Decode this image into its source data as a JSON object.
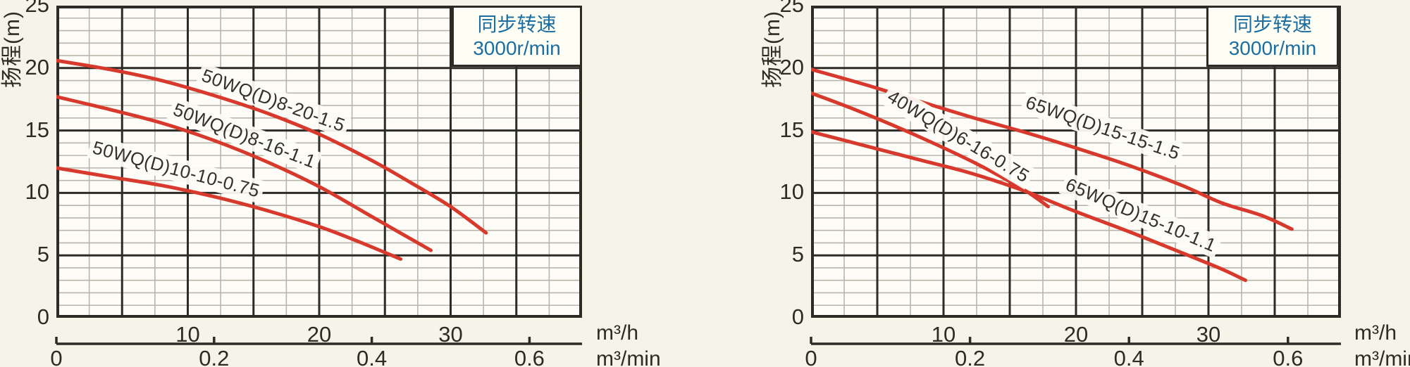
{
  "page": {
    "background": "#f6f4e8"
  },
  "colors": {
    "curve": "#d73a2d",
    "grid_major": "#2d2b26",
    "grid_minor": "#b9b5aa",
    "plot_bg": "#fdfcf6",
    "legend_bg": "#fffef4",
    "legend_text": "#1c6da1",
    "text": "#2d2b26"
  },
  "charts": [
    {
      "y_axis_title": "扬程(m)",
      "legend": {
        "line1": "同步转速",
        "line2": "3000r/min"
      },
      "primary_unit": "m³/h",
      "secondary_unit": "m³/min",
      "chart_data": {
        "type": "line",
        "title": "",
        "ylabel": "扬程(m)",
        "xlabel": "m³/h",
        "x2label": "m³/min",
        "xlim": [
          0,
          40
        ],
        "ylim": [
          0,
          25
        ],
        "x_major_step": 5,
        "x_minor_step": 2.5,
        "y_major_step": 5,
        "y_minor_step": 1,
        "x_tick_labels": [
          "10",
          "20",
          "30"
        ],
        "x_tick_values": [
          10,
          20,
          30
        ],
        "y_tick_labels": [
          "25",
          "20",
          "15",
          "10",
          "5",
          "0"
        ],
        "y_tick_values": [
          25,
          20,
          15,
          10,
          5,
          0
        ],
        "x2_tick_labels": [
          "0",
          "0.2",
          "0.4",
          "0.6"
        ],
        "x2_tick_values": [
          0,
          0.2,
          0.4,
          0.6
        ],
        "x2_to_x_factor": 60,
        "grid": true,
        "legend_position": "top-right",
        "series": [
          {
            "name": "50WQ(D)8-20-1.5",
            "points": [
              [
                0,
                20.6
              ],
              [
                4,
                19.9
              ],
              [
                8,
                19.0
              ],
              [
                12,
                17.8
              ],
              [
                16,
                16.4
              ],
              [
                20,
                14.7
              ],
              [
                24,
                12.6
              ],
              [
                27,
                10.8
              ],
              [
                30,
                8.9
              ],
              [
                32.7,
                6.8
              ]
            ],
            "label_at": [
              16.5,
              17.4
            ],
            "label_angle": 20
          },
          {
            "name": "50WQ(D)8-16-1.1",
            "points": [
              [
                0,
                17.7
              ],
              [
                4,
                16.7
              ],
              [
                8,
                15.6
              ],
              [
                12,
                14.2
              ],
              [
                16,
                12.5
              ],
              [
                20,
                10.5
              ],
              [
                24,
                8.1
              ],
              [
                26.5,
                6.6
              ],
              [
                28.5,
                5.4
              ]
            ],
            "label_at": [
              14.3,
              14.6
            ],
            "label_angle": 21
          },
          {
            "name": "50WQ(D)10-10-0.75",
            "points": [
              [
                0,
                12.0
              ],
              [
                4,
                11.3
              ],
              [
                8,
                10.6
              ],
              [
                12,
                9.7
              ],
              [
                16,
                8.6
              ],
              [
                20,
                7.3
              ],
              [
                23,
                6.1
              ],
              [
                26.2,
                4.7
              ]
            ],
            "label_at": [
              9.1,
              11.9
            ],
            "label_angle": 15
          }
        ]
      }
    },
    {
      "y_axis_title": "扬程(m)",
      "legend": {
        "line1": "同步转速",
        "line2": "3000r/min"
      },
      "primary_unit": "m³/h",
      "secondary_unit": "m³/min",
      "chart_data": {
        "type": "line",
        "title": "",
        "ylabel": "扬程(m)",
        "xlabel": "m³/h",
        "x2label": "m³/min",
        "xlim": [
          0,
          40
        ],
        "ylim": [
          0,
          25
        ],
        "x_major_step": 5,
        "x_minor_step": 2.5,
        "y_major_step": 5,
        "y_minor_step": 1,
        "x_tick_labels": [
          "10",
          "20",
          "30"
        ],
        "x_tick_values": [
          10,
          20,
          30
        ],
        "y_tick_labels": [
          "25",
          "20",
          "15",
          "10",
          "5",
          "0"
        ],
        "y_tick_values": [
          25,
          20,
          15,
          10,
          5,
          0
        ],
        "x2_tick_labels": [
          "0",
          "0.2",
          "0.4",
          "0.6"
        ],
        "x2_tick_values": [
          0,
          0.2,
          0.4,
          0.6
        ],
        "x2_to_x_factor": 60,
        "grid": true,
        "legend_position": "top-right",
        "series": [
          {
            "name": "65WQ(D)15-15-1.5",
            "points": [
              [
                0,
                19.9
              ],
              [
                4,
                18.7
              ],
              [
                8,
                17.4
              ],
              [
                12,
                16.1
              ],
              [
                16,
                14.9
              ],
              [
                20,
                13.6
              ],
              [
                24,
                12.2
              ],
              [
                28,
                10.6
              ],
              [
                31,
                9.2
              ],
              [
                34,
                8.2
              ],
              [
                36.3,
                7.1
              ]
            ],
            "label_at": [
              22,
              15.2
            ],
            "label_angle": 19
          },
          {
            "name": "40WQ(D)6-16-0.75",
            "points": [
              [
                0,
                18.0
              ],
              [
                3,
                16.8
              ],
              [
                6,
                15.5
              ],
              [
                9,
                14.1
              ],
              [
                12,
                12.6
              ],
              [
                14,
                11.5
              ],
              [
                16,
                10.3
              ],
              [
                17,
                9.6
              ],
              [
                17.9,
                8.9
              ]
            ],
            "label_at": [
              11.1,
              14.5
            ],
            "label_angle": 31
          },
          {
            "name": "65WQ(D)15-10-1.1",
            "points": [
              [
                0,
                14.9
              ],
              [
                4,
                13.8
              ],
              [
                8,
                12.7
              ],
              [
                12,
                11.6
              ],
              [
                16,
                10.2
              ],
              [
                20,
                8.5
              ],
              [
                24,
                6.9
              ],
              [
                28,
                5.2
              ],
              [
                31,
                3.9
              ],
              [
                32.8,
                3.0
              ]
            ],
            "label_at": [
              24.9,
              8.2
            ],
            "label_angle": 23
          }
        ]
      }
    }
  ]
}
